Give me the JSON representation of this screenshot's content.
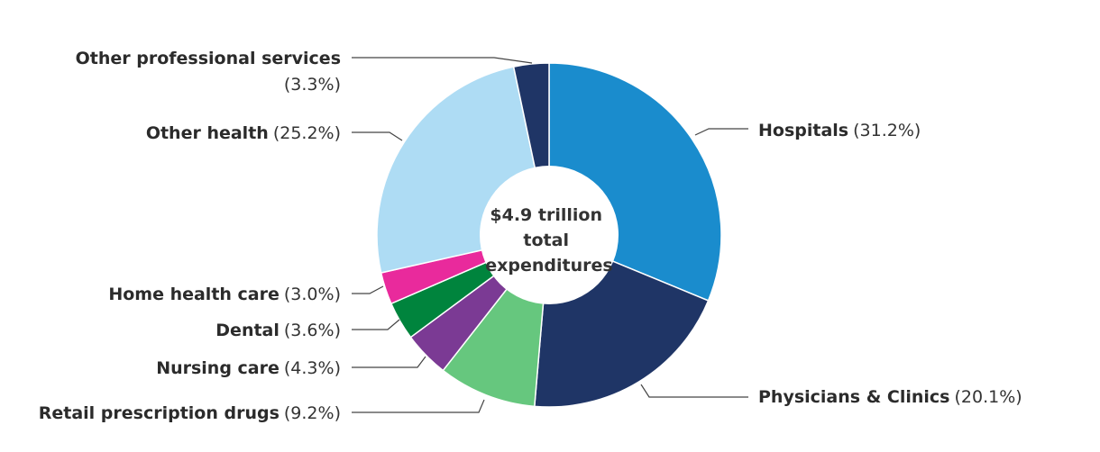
{
  "chart_data": {
    "type": "pie",
    "variant": "donut",
    "title": "",
    "center_label": [
      "$4.9 trillion",
      "total",
      "expenditures"
    ],
    "slices": [
      {
        "name": "Hospitals",
        "value": 31.2,
        "pct_label": "(31.2%)",
        "color": "#1a8ccd"
      },
      {
        "name": "Physicians & Clinics",
        "value": 20.1,
        "pct_label": "(20.1%)",
        "color": "#1f3566"
      },
      {
        "name": "Retail prescription drugs",
        "value": 9.2,
        "pct_label": "(9.2%)",
        "color": "#66c77e"
      },
      {
        "name": "Nursing care",
        "value": 4.3,
        "pct_label": "(4.3%)",
        "color": "#7b3a94"
      },
      {
        "name": "Dental",
        "value": 3.6,
        "pct_label": "(3.6%)",
        "color": "#00843d"
      },
      {
        "name": "Home health care",
        "value": 3.0,
        "pct_label": "(3.0%)",
        "color": "#e92a9c"
      },
      {
        "name": "Other health",
        "value": 25.2,
        "pct_label": "(25.2%)",
        "color": "#aedcf4"
      },
      {
        "name": "Other professional services",
        "value": 3.3,
        "pct_label": "(3.3%)",
        "color": "#1f3566"
      }
    ]
  }
}
